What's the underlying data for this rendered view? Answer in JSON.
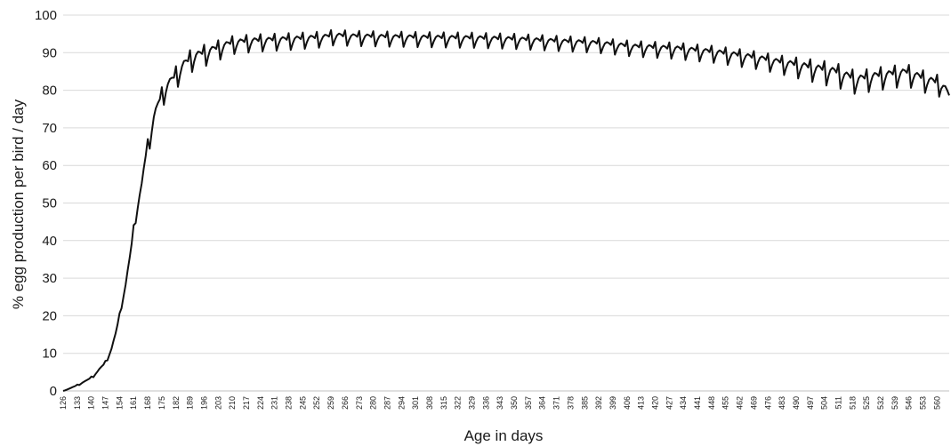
{
  "chart_data": {
    "type": "line",
    "title": "",
    "xlabel": "Age in days",
    "ylabel": "% egg production  per bird / day",
    "xlim": [
      126,
      566
    ],
    "ylim": [
      0,
      100
    ],
    "y_ticks": [
      0,
      10,
      20,
      30,
      40,
      50,
      60,
      70,
      80,
      90,
      100
    ],
    "x_tick_start": 126,
    "x_tick_step": 7,
    "x_tick_count": 63,
    "grid": "horizontal",
    "legend": "none",
    "line_color": "#111111",
    "grid_color": "#d9d9d9",
    "oscillation": {
      "period_days": 7,
      "amplitude_by_age": [
        [
          126,
          0
        ],
        [
          160,
          1
        ],
        [
          166,
          3
        ],
        [
          175,
          3.5
        ],
        [
          187,
          4
        ],
        [
          210,
          3
        ],
        [
          270,
          2.5
        ],
        [
          400,
          2.5
        ],
        [
          480,
          3
        ],
        [
          505,
          4
        ],
        [
          566,
          3.5
        ]
      ]
    },
    "series": [
      {
        "values": [
          [
            126,
            0
          ],
          [
            130,
            0.8
          ],
          [
            133,
            1.5
          ],
          [
            137,
            2.5
          ],
          [
            140,
            3.5
          ],
          [
            143,
            5
          ],
          [
            147,
            7.5
          ],
          [
            150,
            11
          ],
          [
            152,
            15
          ],
          [
            154,
            20
          ],
          [
            157,
            28
          ],
          [
            159,
            35
          ],
          [
            161,
            43
          ],
          [
            163,
            49
          ],
          [
            165,
            54
          ],
          [
            167,
            62
          ],
          [
            169,
            67
          ],
          [
            171,
            72
          ],
          [
            174,
            77
          ],
          [
            177,
            80
          ],
          [
            180,
            82
          ],
          [
            183,
            84
          ],
          [
            186,
            86
          ],
          [
            190,
            88
          ],
          [
            195,
            89
          ],
          [
            200,
            90
          ],
          [
            205,
            91
          ],
          [
            210,
            92
          ],
          [
            220,
            92.5
          ],
          [
            240,
            93
          ],
          [
            255,
            93.5
          ],
          [
            260,
            94
          ],
          [
            270,
            93.8
          ],
          [
            300,
            93.5
          ],
          [
            330,
            93.3
          ],
          [
            350,
            93
          ],
          [
            370,
            92.5
          ],
          [
            390,
            92
          ],
          [
            410,
            91
          ],
          [
            430,
            90.5
          ],
          [
            450,
            89.5
          ],
          [
            470,
            88
          ],
          [
            490,
            86
          ],
          [
            510,
            84
          ],
          [
            520,
            82
          ],
          [
            530,
            83
          ],
          [
            545,
            84
          ],
          [
            555,
            82
          ],
          [
            562,
            81
          ],
          [
            566,
            78
          ]
        ]
      }
    ]
  }
}
